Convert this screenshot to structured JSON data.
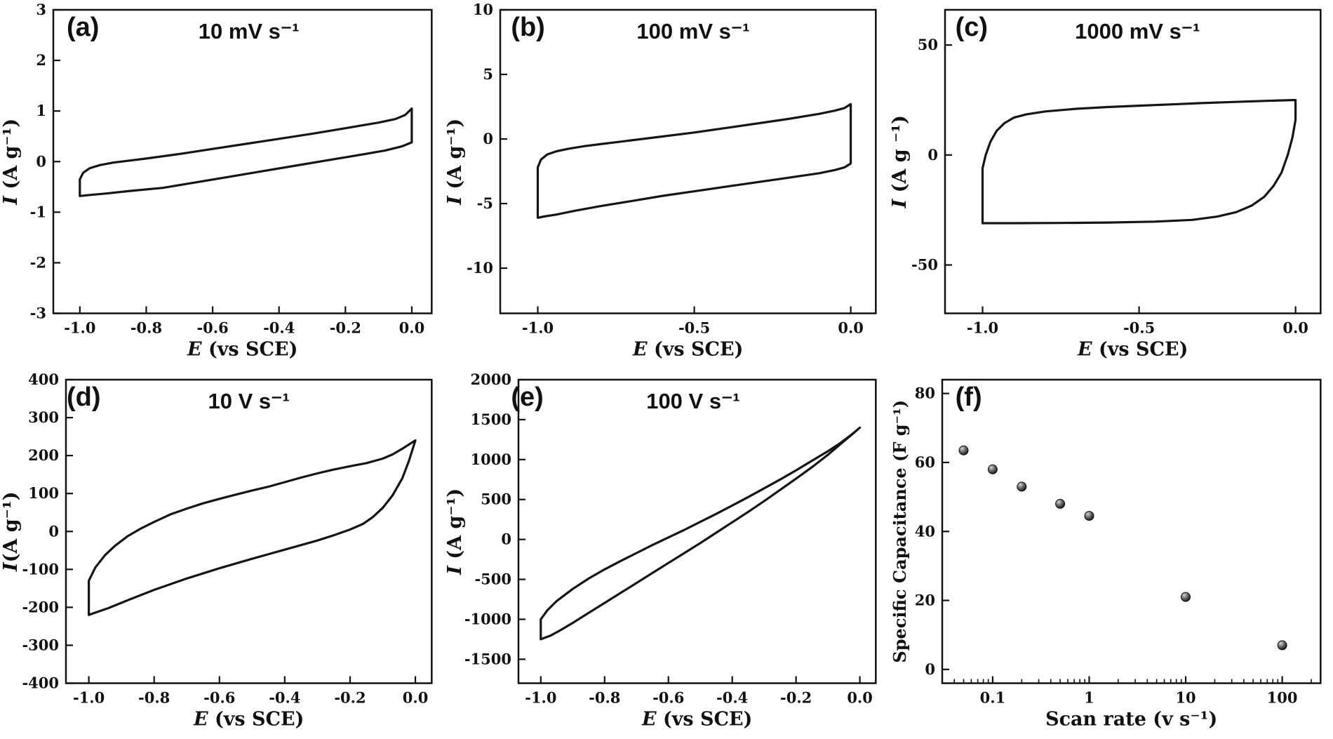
{
  "figure": {
    "background": "#ffffff",
    "curve_color": "#151515",
    "axis_color": "#111111"
  },
  "chart_data": [
    {
      "id": "a",
      "type": "line",
      "letter": "(a)",
      "annotation": "10 mV s⁻¹",
      "xlabel": {
        "var": "E",
        "rest": " (vs SCE)"
      },
      "ylabel": {
        "var": "I",
        "rest": " (A g⁻¹)"
      },
      "xlim": [
        -1.08,
        0.06
      ],
      "ylim": [
        -3,
        3
      ],
      "xticks": [
        -1.0,
        -0.8,
        -0.6,
        -0.4,
        -0.2,
        0.0
      ],
      "xtick_labels": [
        "-1.0",
        "-0.8",
        "-0.6",
        "-0.4",
        "-0.2",
        "0.0"
      ],
      "yticks": [
        -3,
        -2,
        -1,
        0,
        1,
        2,
        3
      ],
      "ytick_labels": [
        "-3",
        "-2",
        "-1",
        "0",
        "1",
        "2",
        "3"
      ],
      "loop": [
        [
          -1.0,
          -0.68
        ],
        [
          -1.0,
          -0.35
        ],
        [
          -0.99,
          -0.22
        ],
        [
          -0.97,
          -0.13
        ],
        [
          -0.94,
          -0.07
        ],
        [
          -0.9,
          -0.02
        ],
        [
          -0.85,
          0.02
        ],
        [
          -0.8,
          0.06
        ],
        [
          -0.7,
          0.15
        ],
        [
          -0.6,
          0.25
        ],
        [
          -0.5,
          0.35
        ],
        [
          -0.4,
          0.45
        ],
        [
          -0.3,
          0.55
        ],
        [
          -0.2,
          0.66
        ],
        [
          -0.1,
          0.77
        ],
        [
          -0.05,
          0.84
        ],
        [
          -0.02,
          0.92
        ],
        [
          0.0,
          1.05
        ],
        [
          0.0,
          0.38
        ],
        [
          -0.03,
          0.3
        ],
        [
          -0.08,
          0.22
        ],
        [
          -0.15,
          0.14
        ],
        [
          -0.25,
          0.03
        ],
        [
          -0.35,
          -0.08
        ],
        [
          -0.45,
          -0.19
        ],
        [
          -0.55,
          -0.3
        ],
        [
          -0.65,
          -0.41
        ],
        [
          -0.75,
          -0.52
        ],
        [
          -0.85,
          -0.58
        ],
        [
          -0.92,
          -0.63
        ],
        [
          -0.97,
          -0.66
        ],
        [
          -1.0,
          -0.68
        ]
      ]
    },
    {
      "id": "b",
      "type": "line",
      "letter": "(b)",
      "annotation": "100 mV s⁻¹",
      "xlabel": {
        "var": "E",
        "rest": " (vs SCE)"
      },
      "ylabel": {
        "var": "I",
        "rest": " (A g⁻¹)"
      },
      "xlim": [
        -1.12,
        0.08
      ],
      "ylim": [
        -13.5,
        10
      ],
      "xticks": [
        -1.0,
        -0.5,
        0.0
      ],
      "xtick_labels": [
        "-1.0",
        "-0.5",
        "0.0"
      ],
      "yticks": [
        -10,
        -5,
        0,
        5,
        10
      ],
      "ytick_labels": [
        "-10",
        "-5",
        "0",
        "5",
        "10"
      ],
      "loop": [
        [
          -1.0,
          -6.1
        ],
        [
          -1.0,
          -2.2
        ],
        [
          -0.99,
          -1.6
        ],
        [
          -0.97,
          -1.2
        ],
        [
          -0.94,
          -0.95
        ],
        [
          -0.9,
          -0.75
        ],
        [
          -0.85,
          -0.55
        ],
        [
          -0.8,
          -0.4
        ],
        [
          -0.7,
          -0.1
        ],
        [
          -0.6,
          0.2
        ],
        [
          -0.5,
          0.5
        ],
        [
          -0.4,
          0.85
        ],
        [
          -0.3,
          1.2
        ],
        [
          -0.2,
          1.55
        ],
        [
          -0.1,
          1.95
        ],
        [
          -0.05,
          2.2
        ],
        [
          -0.02,
          2.4
        ],
        [
          0.0,
          2.7
        ],
        [
          0.0,
          -1.9
        ],
        [
          -0.02,
          -2.2
        ],
        [
          -0.05,
          -2.4
        ],
        [
          -0.1,
          -2.65
        ],
        [
          -0.2,
          -3.0
        ],
        [
          -0.3,
          -3.35
        ],
        [
          -0.4,
          -3.7
        ],
        [
          -0.5,
          -4.05
        ],
        [
          -0.6,
          -4.4
        ],
        [
          -0.7,
          -4.8
        ],
        [
          -0.8,
          -5.2
        ],
        [
          -0.88,
          -5.55
        ],
        [
          -0.94,
          -5.85
        ],
        [
          -0.98,
          -6.0
        ],
        [
          -1.0,
          -6.1
        ]
      ]
    },
    {
      "id": "c",
      "type": "line",
      "letter": "(c)",
      "annotation": "1000 mV s⁻¹",
      "xlabel": {
        "var": "E",
        "rest": " (vs SCE)"
      },
      "ylabel": {
        "var": "I",
        "rest": " (A g ⁻¹)"
      },
      "xlim": [
        -1.12,
        0.08
      ],
      "ylim": [
        -72,
        66
      ],
      "xticks": [
        -1.0,
        -0.5,
        0.0
      ],
      "xtick_labels": [
        "-1.0",
        "-0.5",
        "0.0"
      ],
      "yticks": [
        -50,
        0,
        50
      ],
      "ytick_labels": [
        "-50",
        "0",
        "50"
      ],
      "loop": [
        [
          -1.0,
          -31
        ],
        [
          -1.0,
          -6
        ],
        [
          -0.99,
          0
        ],
        [
          -0.975,
          6
        ],
        [
          -0.955,
          11
        ],
        [
          -0.93,
          14.5
        ],
        [
          -0.9,
          17
        ],
        [
          -0.86,
          18.5
        ],
        [
          -0.8,
          19.8
        ],
        [
          -0.7,
          21
        ],
        [
          -0.6,
          21.8
        ],
        [
          -0.5,
          22.4
        ],
        [
          -0.4,
          23
        ],
        [
          -0.3,
          23.6
        ],
        [
          -0.2,
          24.1
        ],
        [
          -0.1,
          24.6
        ],
        [
          -0.05,
          24.8
        ],
        [
          0.0,
          25
        ],
        [
          0.0,
          16
        ],
        [
          -0.01,
          8
        ],
        [
          -0.025,
          0
        ],
        [
          -0.045,
          -8
        ],
        [
          -0.07,
          -14
        ],
        [
          -0.1,
          -19
        ],
        [
          -0.14,
          -23
        ],
        [
          -0.19,
          -26
        ],
        [
          -0.25,
          -28
        ],
        [
          -0.33,
          -29.5
        ],
        [
          -0.45,
          -30.3
        ],
        [
          -0.6,
          -30.7
        ],
        [
          -0.75,
          -30.9
        ],
        [
          -0.9,
          -31
        ],
        [
          -1.0,
          -31
        ]
      ]
    },
    {
      "id": "d",
      "type": "line",
      "letter": "(d)",
      "annotation": "10 V s⁻¹",
      "xlabel": {
        "var": "E",
        "rest": " (vs SCE)"
      },
      "ylabel": {
        "var": "I",
        "rest": "(A g⁻¹)"
      },
      "xlim": [
        -1.07,
        0.05
      ],
      "ylim": [
        -400,
        400
      ],
      "xticks": [
        -1.0,
        -0.8,
        -0.6,
        -0.4,
        -0.2,
        0.0
      ],
      "xtick_labels": [
        "-1.0",
        "-0.8",
        "-0.6",
        "-0.4",
        "-0.2",
        "0.0"
      ],
      "yticks": [
        -400,
        -300,
        -200,
        -100,
        0,
        100,
        200,
        300,
        400
      ],
      "ytick_labels": [
        "-400",
        "-300",
        "-200",
        "-100",
        "0",
        "100",
        "200",
        "300",
        "400"
      ],
      "loop": [
        [
          -1.0,
          -220
        ],
        [
          -1.0,
          -130
        ],
        [
          -0.98,
          -95
        ],
        [
          -0.95,
          -62
        ],
        [
          -0.92,
          -38
        ],
        [
          -0.88,
          -12
        ],
        [
          -0.84,
          8
        ],
        [
          -0.8,
          25
        ],
        [
          -0.75,
          45
        ],
        [
          -0.7,
          60
        ],
        [
          -0.65,
          74
        ],
        [
          -0.6,
          86
        ],
        [
          -0.55,
          97
        ],
        [
          -0.5,
          108
        ],
        [
          -0.45,
          118
        ],
        [
          -0.4,
          130
        ],
        [
          -0.35,
          142
        ],
        [
          -0.3,
          153
        ],
        [
          -0.25,
          163
        ],
        [
          -0.2,
          172
        ],
        [
          -0.15,
          180
        ],
        [
          -0.1,
          192
        ],
        [
          -0.07,
          203
        ],
        [
          -0.04,
          218
        ],
        [
          0.0,
          240
        ],
        [
          -0.02,
          185
        ],
        [
          -0.04,
          140
        ],
        [
          -0.07,
          95
        ],
        [
          -0.1,
          62
        ],
        [
          -0.13,
          38
        ],
        [
          -0.16,
          20
        ],
        [
          -0.2,
          5
        ],
        [
          -0.25,
          -10
        ],
        [
          -0.3,
          -24
        ],
        [
          -0.4,
          -48
        ],
        [
          -0.5,
          -72
        ],
        [
          -0.6,
          -97
        ],
        [
          -0.7,
          -124
        ],
        [
          -0.8,
          -154
        ],
        [
          -0.88,
          -181
        ],
        [
          -0.94,
          -202
        ],
        [
          -0.98,
          -214
        ],
        [
          -1.0,
          -220
        ]
      ]
    },
    {
      "id": "e",
      "type": "line",
      "letter": "(e)",
      "annotation": "100 V s⁻¹",
      "xlabel": {
        "var": "E",
        "rest": " (vs SCE)"
      },
      "ylabel": {
        "var": "I",
        "rest": " (A g⁻¹)"
      },
      "xlim": [
        -1.07,
        0.05
      ],
      "ylim": [
        -1800,
        2000
      ],
      "xticks": [
        -1.0,
        -0.8,
        -0.6,
        -0.4,
        -0.2,
        0.0
      ],
      "xtick_labels": [
        "-1.0",
        "-0.8",
        "-0.6",
        "-0.4",
        "-0.2",
        "0.0"
      ],
      "yticks": [
        -1500,
        -1000,
        -500,
        0,
        500,
        1000,
        1500,
        2000
      ],
      "ytick_labels": [
        "-1500",
        "-1000",
        "-500",
        "0",
        "500",
        "1000",
        "1500",
        "2000"
      ],
      "loop": [
        [
          -1.0,
          -1250
        ],
        [
          -1.0,
          -1000
        ],
        [
          -0.98,
          -890
        ],
        [
          -0.95,
          -770
        ],
        [
          -0.9,
          -620
        ],
        [
          -0.85,
          -490
        ],
        [
          -0.8,
          -375
        ],
        [
          -0.75,
          -270
        ],
        [
          -0.7,
          -170
        ],
        [
          -0.65,
          -70
        ],
        [
          -0.6,
          25
        ],
        [
          -0.55,
          120
        ],
        [
          -0.5,
          220
        ],
        [
          -0.45,
          320
        ],
        [
          -0.4,
          425
        ],
        [
          -0.35,
          530
        ],
        [
          -0.3,
          640
        ],
        [
          -0.25,
          750
        ],
        [
          -0.2,
          865
        ],
        [
          -0.15,
          985
        ],
        [
          -0.1,
          1105
        ],
        [
          -0.06,
          1210
        ],
        [
          -0.03,
          1300
        ],
        [
          0.0,
          1400
        ],
        [
          -0.02,
          1330
        ],
        [
          -0.05,
          1230
        ],
        [
          -0.1,
          1060
        ],
        [
          -0.15,
          905
        ],
        [
          -0.2,
          760
        ],
        [
          -0.25,
          620
        ],
        [
          -0.3,
          480
        ],
        [
          -0.35,
          345
        ],
        [
          -0.4,
          215
        ],
        [
          -0.45,
          85
        ],
        [
          -0.5,
          -45
        ],
        [
          -0.55,
          -170
        ],
        [
          -0.6,
          -295
        ],
        [
          -0.65,
          -420
        ],
        [
          -0.7,
          -545
        ],
        [
          -0.75,
          -670
        ],
        [
          -0.8,
          -795
        ],
        [
          -0.85,
          -920
        ],
        [
          -0.9,
          -1045
        ],
        [
          -0.94,
          -1140
        ],
        [
          -0.97,
          -1205
        ],
        [
          -1.0,
          -1250
        ]
      ]
    },
    {
      "id": "f",
      "type": "scatter",
      "letter": "(f)",
      "xscale": "log",
      "xlabel": {
        "var": "",
        "rest": "Scan rate (v s⁻¹)"
      },
      "ylabel": {
        "var": "",
        "rest": "Specific Capacitance (F g⁻¹)"
      },
      "xlim": [
        0.03,
        250
      ],
      "ylim": [
        -4,
        84
      ],
      "xticks": [
        0.1,
        1,
        10,
        100
      ],
      "xtick_labels": [
        "0.1",
        "1",
        "10",
        "100"
      ],
      "yticks": [
        0,
        20,
        40,
        60,
        80
      ],
      "ytick_labels": [
        "0",
        "20",
        "40",
        "60",
        "80"
      ],
      "points": [
        [
          0.05,
          63.5
        ],
        [
          0.1,
          58
        ],
        [
          0.2,
          53
        ],
        [
          0.5,
          48
        ],
        [
          1,
          44.5
        ],
        [
          10,
          21
        ],
        [
          100,
          7
        ]
      ]
    }
  ]
}
